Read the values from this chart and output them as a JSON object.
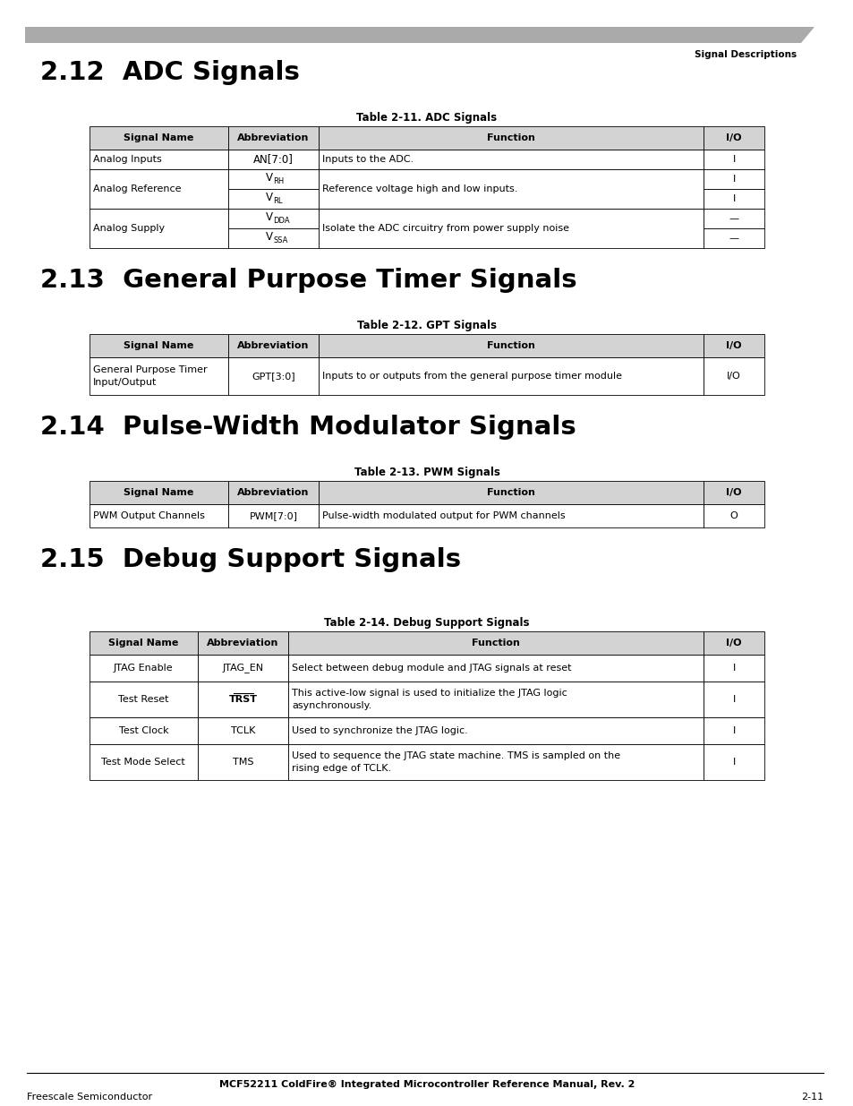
{
  "page_header_text": "Signal Descriptions",
  "background_color": "#ffffff",
  "section_212_title": "2.12  ADC Signals",
  "table_211_title": "Table 2-11. ADC Signals",
  "adc_headers": [
    "Signal Name",
    "Abbreviation",
    "Function",
    "I/O"
  ],
  "section_213_title": "2.13  General Purpose Timer Signals",
  "table_212_title": "Table 2-12. GPT Signals",
  "gpt_headers": [
    "Signal Name",
    "Abbreviation",
    "Function",
    "I/O"
  ],
  "gpt_rows": [
    [
      "General Purpose Timer\nInput/Output",
      "GPT[3:0]",
      "Inputs to or outputs from the general purpose timer module",
      "I/O"
    ]
  ],
  "section_214_title": "2.14  Pulse-Width Modulator Signals",
  "table_213_title": "Table 2-13. PWM Signals",
  "pwm_headers": [
    "Signal Name",
    "Abbreviation",
    "Function",
    "I/O"
  ],
  "pwm_rows": [
    [
      "PWM Output Channels",
      "PWM[7:0]",
      "Pulse-width modulated output for PWM channels",
      "O"
    ]
  ],
  "section_215_title": "2.15  Debug Support Signals",
  "table_214_title": "Table 2-14. Debug Support Signals",
  "debug_headers": [
    "Signal Name",
    "Abbreviation",
    "Function",
    "I/O"
  ],
  "debug_rows": [
    [
      "JTAG Enable",
      "JTAG_EN",
      "Select between debug module and JTAG signals at reset",
      "I"
    ],
    [
      "Test Reset",
      "TRST",
      "This active-low signal is used to initialize the JTAG logic\nasynchronously.",
      "I"
    ],
    [
      "Test Clock",
      "TCLK",
      "Used to synchronize the JTAG logic.",
      "I"
    ],
    [
      "Test Mode Select",
      "TMS",
      "Used to sequence the JTAG state machine. TMS is sampled on the\nrising edge of TCLK.",
      "I"
    ]
  ],
  "debug_overline": [
    "TRST"
  ],
  "footer_center": "MCF52211 ColdFire® Integrated Microcontroller Reference Manual, Rev. 2",
  "footer_left": "Freescale Semiconductor",
  "footer_right": "2-11"
}
